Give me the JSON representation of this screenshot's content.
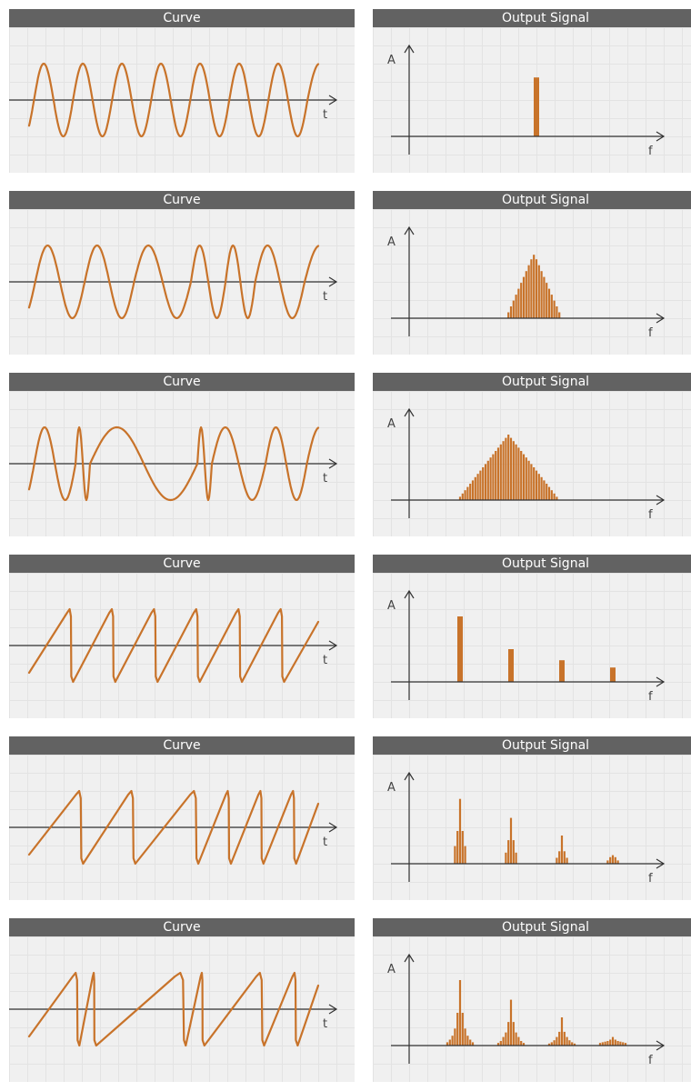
{
  "colors": {
    "header_bg": "#626262",
    "header_text": "#ffffff",
    "panel_bg": "#f0f0f0",
    "grid": "#e3e3e3",
    "signal": "#c8732a",
    "axis": "#333333"
  },
  "rows": [
    {
      "curve": {
        "title": "Curve",
        "t_label": "t",
        "type": "sine",
        "half_periods": [
          1,
          1,
          1,
          1,
          1,
          1,
          1,
          1,
          1,
          1,
          1,
          1,
          1,
          1
        ],
        "end_fraction": 0.55
      },
      "spectrum": {
        "title": "Output Signal",
        "a_label": "A",
        "f_label": "f",
        "bars": [
          {
            "f": 0.5,
            "a": 0.9,
            "w": 6
          }
        ]
      }
    },
    {
      "curve": {
        "title": "Curve",
        "t_label": "t",
        "type": "sine",
        "half_periods": [
          1,
          1,
          1,
          1,
          1.15,
          1.15,
          0.7,
          0.7,
          0.6,
          0.6,
          1,
          1
        ],
        "end_fraction": 0.55
      },
      "spectrum": {
        "title": "Output Signal",
        "a_label": "A",
        "f_label": "f",
        "bars": [
          {
            "f": 0.39,
            "a": 0.09
          },
          {
            "f": 0.4,
            "a": 0.18
          },
          {
            "f": 0.41,
            "a": 0.27
          },
          {
            "f": 0.42,
            "a": 0.36
          },
          {
            "f": 0.43,
            "a": 0.45
          },
          {
            "f": 0.44,
            "a": 0.54
          },
          {
            "f": 0.45,
            "a": 0.63
          },
          {
            "f": 0.46,
            "a": 0.72
          },
          {
            "f": 0.47,
            "a": 0.81
          },
          {
            "f": 0.48,
            "a": 0.9
          },
          {
            "f": 0.49,
            "a": 0.97
          },
          {
            "f": 0.5,
            "a": 0.9
          },
          {
            "f": 0.51,
            "a": 0.81
          },
          {
            "f": 0.52,
            "a": 0.72
          },
          {
            "f": 0.53,
            "a": 0.63
          },
          {
            "f": 0.54,
            "a": 0.54
          },
          {
            "f": 0.55,
            "a": 0.45
          },
          {
            "f": 0.56,
            "a": 0.36
          },
          {
            "f": 0.57,
            "a": 0.27
          },
          {
            "f": 0.58,
            "a": 0.18
          },
          {
            "f": 0.59,
            "a": 0.09
          }
        ]
      }
    },
    {
      "curve": {
        "title": "Curve",
        "t_label": "t",
        "type": "sine",
        "half_periods": [
          1,
          1,
          0.35,
          0.35,
          2.6,
          2.6,
          0.35,
          0.35,
          1.3,
          1.3,
          1,
          1
        ],
        "end_fraction": 0.55
      },
      "spectrum": {
        "title": "Output Signal",
        "a_label": "A",
        "f_label": "f",
        "bars": [
          {
            "f": 0.2,
            "a": 0.05
          },
          {
            "f": 0.21,
            "a": 0.1
          },
          {
            "f": 0.22,
            "a": 0.15
          },
          {
            "f": 0.23,
            "a": 0.2
          },
          {
            "f": 0.24,
            "a": 0.25
          },
          {
            "f": 0.25,
            "a": 0.3
          },
          {
            "f": 0.26,
            "a": 0.35
          },
          {
            "f": 0.27,
            "a": 0.4
          },
          {
            "f": 0.28,
            "a": 0.45
          },
          {
            "f": 0.29,
            "a": 0.5
          },
          {
            "f": 0.3,
            "a": 0.55
          },
          {
            "f": 0.31,
            "a": 0.6
          },
          {
            "f": 0.32,
            "a": 0.65
          },
          {
            "f": 0.33,
            "a": 0.7
          },
          {
            "f": 0.34,
            "a": 0.75
          },
          {
            "f": 0.35,
            "a": 0.8
          },
          {
            "f": 0.36,
            "a": 0.85
          },
          {
            "f": 0.37,
            "a": 0.9
          },
          {
            "f": 0.38,
            "a": 0.95
          },
          {
            "f": 0.39,
            "a": 1.0
          },
          {
            "f": 0.4,
            "a": 0.95
          },
          {
            "f": 0.41,
            "a": 0.9
          },
          {
            "f": 0.42,
            "a": 0.85
          },
          {
            "f": 0.43,
            "a": 0.8
          },
          {
            "f": 0.44,
            "a": 0.75
          },
          {
            "f": 0.45,
            "a": 0.7
          },
          {
            "f": 0.46,
            "a": 0.65
          },
          {
            "f": 0.47,
            "a": 0.6
          },
          {
            "f": 0.48,
            "a": 0.55
          },
          {
            "f": 0.49,
            "a": 0.5
          },
          {
            "f": 0.5,
            "a": 0.45
          },
          {
            "f": 0.51,
            "a": 0.4
          },
          {
            "f": 0.52,
            "a": 0.35
          },
          {
            "f": 0.53,
            "a": 0.3
          },
          {
            "f": 0.54,
            "a": 0.25
          },
          {
            "f": 0.55,
            "a": 0.2
          },
          {
            "f": 0.56,
            "a": 0.15
          },
          {
            "f": 0.57,
            "a": 0.1
          },
          {
            "f": 0.58,
            "a": 0.05
          }
        ]
      }
    },
    {
      "curve": {
        "title": "Curve",
        "t_label": "t",
        "type": "saw",
        "periods": [
          1,
          1,
          1,
          1,
          1,
          1
        ],
        "end_fraction": 0.85
      },
      "spectrum": {
        "title": "Output Signal",
        "a_label": "A",
        "f_label": "f",
        "bars": [
          {
            "f": 0.2,
            "a": 1.0,
            "w": 6
          },
          {
            "f": 0.4,
            "a": 0.5,
            "w": 6
          },
          {
            "f": 0.6,
            "a": 0.33,
            "w": 6
          },
          {
            "f": 0.8,
            "a": 0.22,
            "w": 6
          }
        ]
      }
    },
    {
      "curve": {
        "title": "Curve",
        "t_label": "t",
        "type": "saw",
        "periods": [
          1.2,
          1.2,
          1.45,
          0.75,
          0.75,
          0.75
        ],
        "end_fraction": 0.55
      },
      "spectrum": {
        "title": "Output Signal",
        "a_label": "A",
        "f_label": "f",
        "bars": [
          {
            "f": 0.18,
            "a": 0.27
          },
          {
            "f": 0.19,
            "a": 0.5
          },
          {
            "f": 0.2,
            "a": 0.99
          },
          {
            "f": 0.21,
            "a": 0.5
          },
          {
            "f": 0.22,
            "a": 0.27
          },
          {
            "f": 0.38,
            "a": 0.17
          },
          {
            "f": 0.39,
            "a": 0.36
          },
          {
            "f": 0.4,
            "a": 0.7
          },
          {
            "f": 0.41,
            "a": 0.36
          },
          {
            "f": 0.42,
            "a": 0.17
          },
          {
            "f": 0.58,
            "a": 0.09
          },
          {
            "f": 0.59,
            "a": 0.19
          },
          {
            "f": 0.6,
            "a": 0.43
          },
          {
            "f": 0.61,
            "a": 0.19
          },
          {
            "f": 0.62,
            "a": 0.09
          },
          {
            "f": 0.78,
            "a": 0.05
          },
          {
            "f": 0.79,
            "a": 0.1
          },
          {
            "f": 0.8,
            "a": 0.13
          },
          {
            "f": 0.81,
            "a": 0.1
          },
          {
            "f": 0.82,
            "a": 0.05
          }
        ]
      }
    },
    {
      "curve": {
        "title": "Curve",
        "t_label": "t",
        "type": "saw",
        "periods": [
          1.3,
          0.45,
          2.4,
          0.5,
          1.6,
          0.9
        ],
        "end_fraction": 0.6
      },
      "spectrum": {
        "title": "Output Signal",
        "a_label": "A",
        "f_label": "f",
        "bars": [
          {
            "f": 0.15,
            "a": 0.05
          },
          {
            "f": 0.16,
            "a": 0.09
          },
          {
            "f": 0.17,
            "a": 0.15
          },
          {
            "f": 0.18,
            "a": 0.26
          },
          {
            "f": 0.19,
            "a": 0.5
          },
          {
            "f": 0.2,
            "a": 1.0
          },
          {
            "f": 0.21,
            "a": 0.5
          },
          {
            "f": 0.22,
            "a": 0.26
          },
          {
            "f": 0.23,
            "a": 0.15
          },
          {
            "f": 0.24,
            "a": 0.09
          },
          {
            "f": 0.25,
            "a": 0.05
          },
          {
            "f": 0.35,
            "a": 0.04
          },
          {
            "f": 0.36,
            "a": 0.07
          },
          {
            "f": 0.37,
            "a": 0.13
          },
          {
            "f": 0.38,
            "a": 0.2
          },
          {
            "f": 0.39,
            "a": 0.36
          },
          {
            "f": 0.4,
            "a": 0.7
          },
          {
            "f": 0.41,
            "a": 0.36
          },
          {
            "f": 0.42,
            "a": 0.2
          },
          {
            "f": 0.43,
            "a": 0.13
          },
          {
            "f": 0.44,
            "a": 0.07
          },
          {
            "f": 0.45,
            "a": 0.04
          },
          {
            "f": 0.55,
            "a": 0.03
          },
          {
            "f": 0.56,
            "a": 0.05
          },
          {
            "f": 0.57,
            "a": 0.08
          },
          {
            "f": 0.58,
            "a": 0.13
          },
          {
            "f": 0.59,
            "a": 0.21
          },
          {
            "f": 0.6,
            "a": 0.43
          },
          {
            "f": 0.61,
            "a": 0.21
          },
          {
            "f": 0.62,
            "a": 0.13
          },
          {
            "f": 0.63,
            "a": 0.08
          },
          {
            "f": 0.64,
            "a": 0.05
          },
          {
            "f": 0.65,
            "a": 0.03
          },
          {
            "f": 0.75,
            "a": 0.04
          },
          {
            "f": 0.76,
            "a": 0.05
          },
          {
            "f": 0.77,
            "a": 0.06
          },
          {
            "f": 0.78,
            "a": 0.07
          },
          {
            "f": 0.79,
            "a": 0.09
          },
          {
            "f": 0.8,
            "a": 0.13
          },
          {
            "f": 0.81,
            "a": 0.09
          },
          {
            "f": 0.82,
            "a": 0.07
          },
          {
            "f": 0.83,
            "a": 0.06
          },
          {
            "f": 0.84,
            "a": 0.05
          },
          {
            "f": 0.85,
            "a": 0.04
          }
        ]
      }
    }
  ]
}
